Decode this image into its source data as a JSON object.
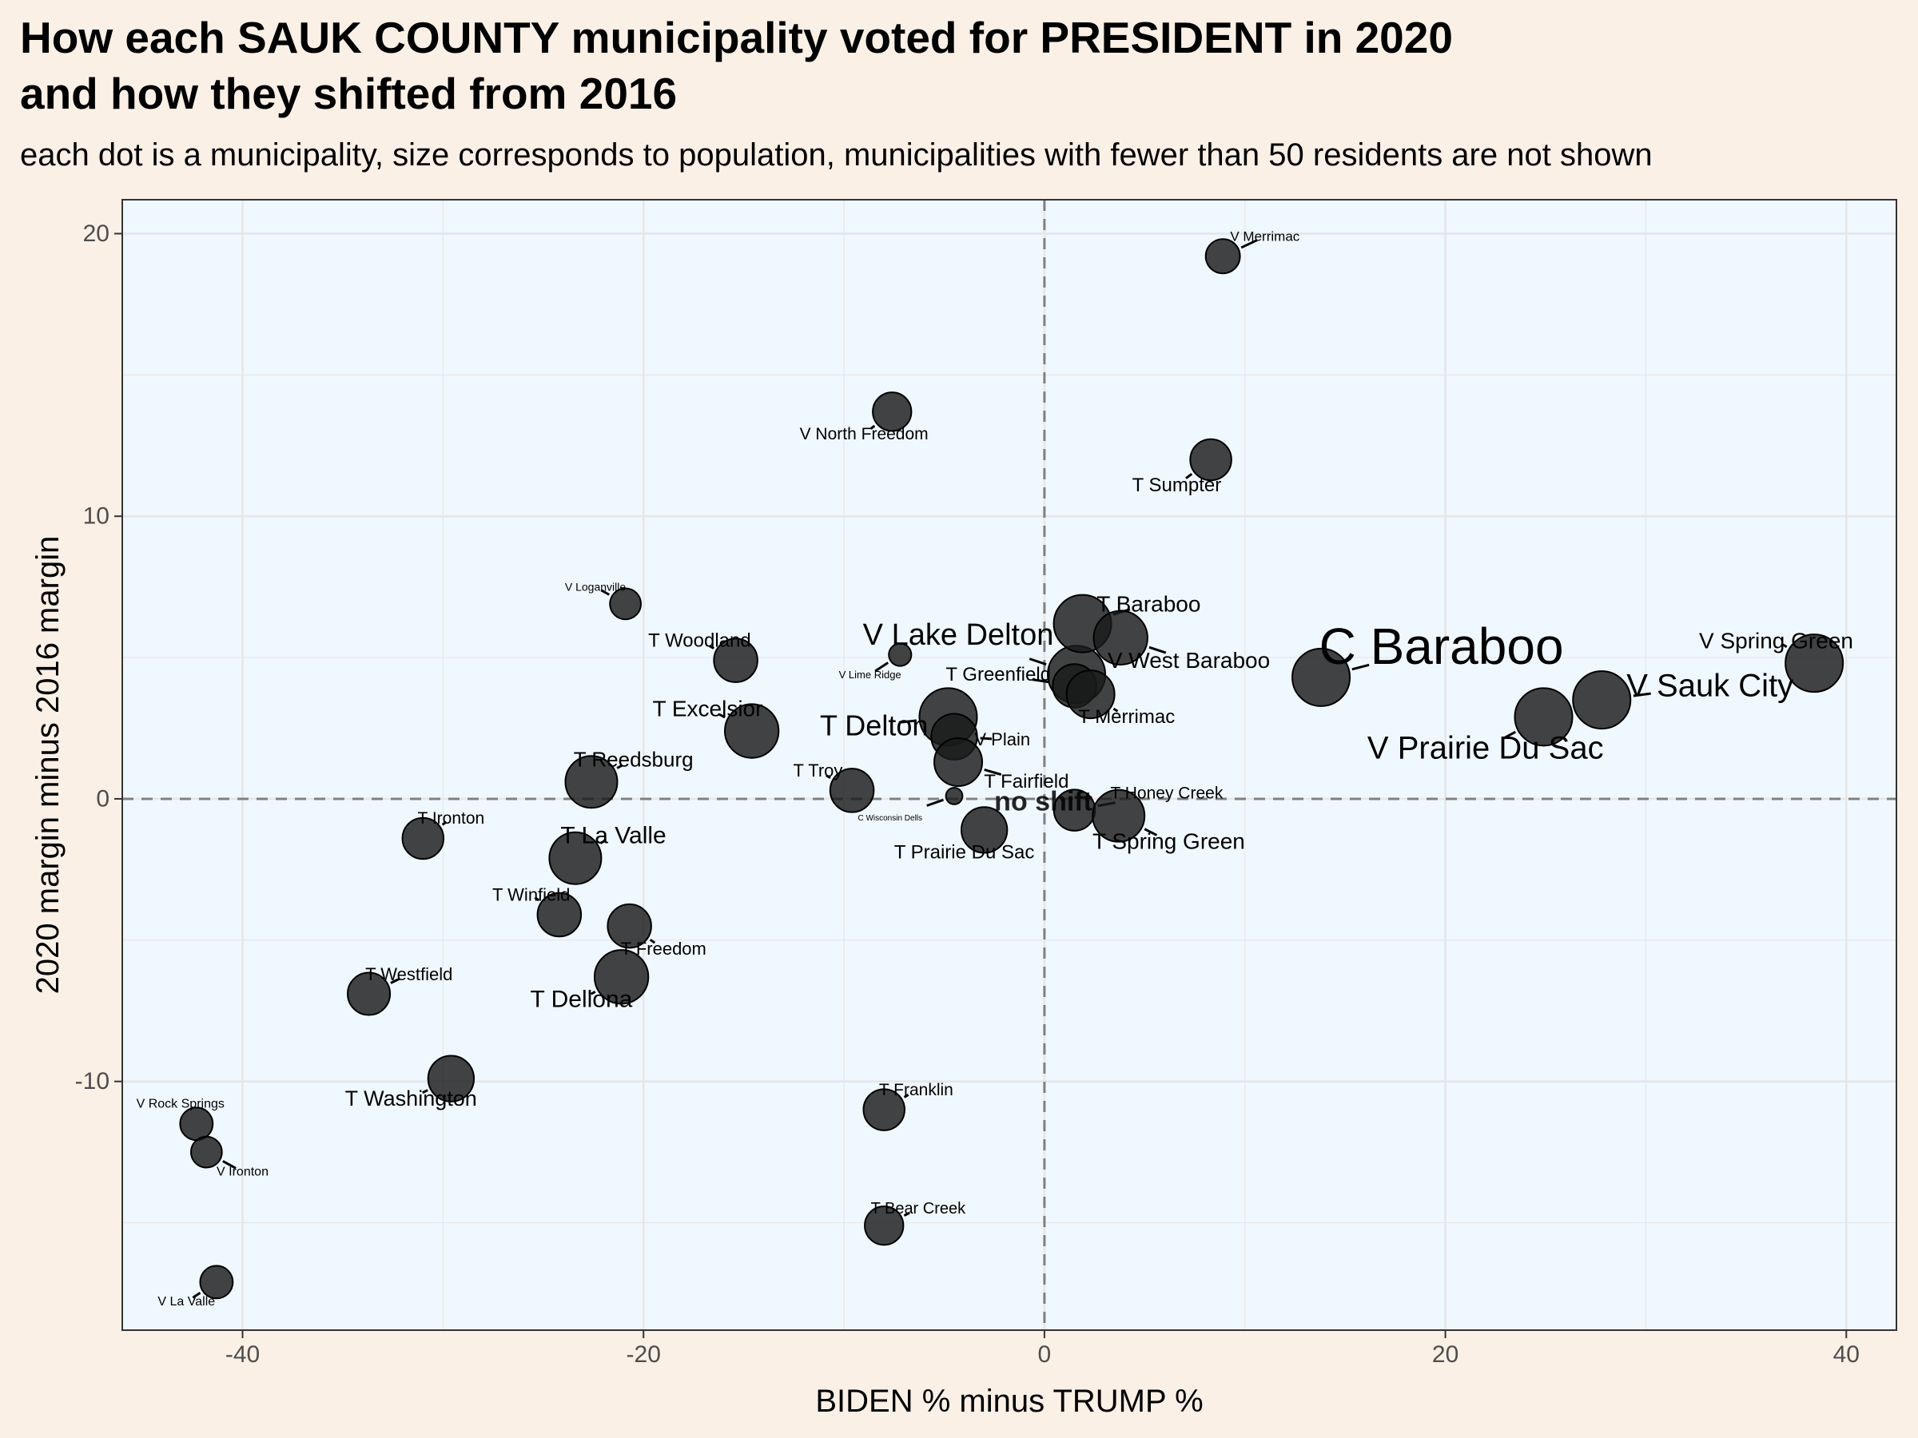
{
  "title_line1": "How each SAUK COUNTY municipality voted for PRESIDENT in 2020",
  "title_line2": "and how they shifted from 2016",
  "subtitle": "each dot is a municipality, size corresponds to population, municipalities with fewer than 50 residents are not shown",
  "colors": {
    "page_background": "#FAF0E6",
    "panel_background": "#F0F8FF",
    "grid": "#E6E6E6",
    "points": "#1a1a1a",
    "reference_lines": "#808080"
  },
  "chart_data": {
    "type": "scatter",
    "xlabel": "BIDEN % minus TRUMP %",
    "ylabel": "2020 margin minus 2016 margin",
    "xlim": [
      -46,
      42.5
    ],
    "ylim": [
      -18.8,
      21.2
    ],
    "xticks": [
      -40,
      -20,
      0,
      20,
      40
    ],
    "yticks": [
      -10,
      0,
      10,
      20
    ],
    "grid": true,
    "reference_lines": {
      "x": 0,
      "y": 0,
      "style": "dashed"
    },
    "reference_label": "no shift",
    "points": [
      {
        "name": "C Baraboo",
        "x": 13.8,
        "y": 4.3,
        "size": 12000,
        "label_size": 64,
        "lx": 19.8,
        "ly": 5.4
      },
      {
        "name": "V Sauk City",
        "x": 27.8,
        "y": 3.5,
        "size": 3500,
        "label_size": 40,
        "lx": 33.2,
        "ly": 4.0
      },
      {
        "name": "V Prairie Du Sac",
        "x": 24.9,
        "y": 2.9,
        "size": 4200,
        "label_size": 40,
        "lx": 22.0,
        "ly": 1.8
      },
      {
        "name": "V Spring Green",
        "x": 38.4,
        "y": 4.8,
        "size": 1650,
        "label_size": 28,
        "lx": 36.5,
        "ly": 5.6
      },
      {
        "name": "V Merrimac",
        "x": 8.9,
        "y": 19.2,
        "size": 450,
        "label_size": 17,
        "lx": 11.0,
        "ly": 19.9
      },
      {
        "name": "T Sumpter",
        "x": 8.3,
        "y": 12.0,
        "size": 700,
        "label_size": 24,
        "lx": 6.6,
        "ly": 11.1
      },
      {
        "name": "V North Freedom",
        "x": -7.6,
        "y": 13.7,
        "size": 600,
        "label_size": 21,
        "lx": -9.0,
        "ly": 12.9
      },
      {
        "name": "V Lake Delton",
        "x": 1.6,
        "y": 4.4,
        "size": 2900,
        "label_size": 38,
        "lx": -4.3,
        "ly": 5.8
      },
      {
        "name": "T Baraboo",
        "x": 1.9,
        "y": 6.2,
        "size": 1800,
        "label_size": 28,
        "lx": 5.2,
        "ly": 6.9
      },
      {
        "name": "V West Baraboo",
        "x": 3.8,
        "y": 5.7,
        "size": 1300,
        "label_size": 28,
        "lx": 7.2,
        "ly": 4.9
      },
      {
        "name": "T Greenfield",
        "x": 1.5,
        "y": 4.0,
        "size": 800,
        "label_size": 24,
        "lx": -2.3,
        "ly": 4.4
      },
      {
        "name": "T Merrimac",
        "x": 2.3,
        "y": 3.7,
        "size": 1000,
        "label_size": 24,
        "lx": 4.1,
        "ly": 2.9
      },
      {
        "name": "T Delton",
        "x": -4.8,
        "y": 2.9,
        "size": 8000,
        "label_size": 36,
        "lx": -8.5,
        "ly": 2.6
      },
      {
        "name": "V Lime Ridge",
        "x": -7.2,
        "y": 5.1,
        "size": 150,
        "label_size": 13,
        "lx": -8.7,
        "ly": 4.4
      },
      {
        "name": "V Plain",
        "x": -4.5,
        "y": 2.2,
        "size": 900,
        "label_size": 22,
        "lx": -2.1,
        "ly": 2.1
      },
      {
        "name": "T Fairfield",
        "x": -4.3,
        "y": 1.3,
        "size": 1000,
        "label_size": 24,
        "lx": -0.9,
        "ly": 0.6
      },
      {
        "name": "T Troy",
        "x": -9.6,
        "y": 0.3,
        "size": 800,
        "label_size": 22,
        "lx": -11.3,
        "ly": 1.0
      },
      {
        "name": "C Wisconsin Dells",
        "x": -4.5,
        "y": 0.1,
        "size": 60,
        "label_size": 10,
        "lx": -7.7,
        "ly": -0.7
      },
      {
        "name": "T Prairie Du Sac",
        "x": -3.0,
        "y": -1.1,
        "size": 900,
        "label_size": 24,
        "lx": -4.0,
        "ly": -1.9
      },
      {
        "name": "T Honey Creek",
        "x": 1.5,
        "y": -0.4,
        "size": 700,
        "label_size": 21,
        "lx": 6.1,
        "ly": 0.2
      },
      {
        "name": "T Spring Green",
        "x": 3.7,
        "y": -0.6,
        "size": 1200,
        "label_size": 28,
        "lx": 6.2,
        "ly": -1.5
      },
      {
        "name": "V Loganville",
        "x": -20.9,
        "y": 6.9,
        "size": 350,
        "label_size": 14,
        "lx": -22.4,
        "ly": 7.5
      },
      {
        "name": "T Woodland",
        "x": -15.4,
        "y": 4.9,
        "size": 800,
        "label_size": 24,
        "lx": -17.2,
        "ly": 5.6
      },
      {
        "name": "T Excelsior",
        "x": -14.6,
        "y": 2.4,
        "size": 1300,
        "label_size": 28,
        "lx": -16.8,
        "ly": 3.2
      },
      {
        "name": "T Reedsburg",
        "x": -22.6,
        "y": 0.6,
        "size": 1200,
        "label_size": 26,
        "lx": -20.5,
        "ly": 1.4
      },
      {
        "name": "T Ironton",
        "x": -31.0,
        "y": -1.4,
        "size": 700,
        "label_size": 21,
        "lx": -29.6,
        "ly": -0.7
      },
      {
        "name": "T La Valle",
        "x": -23.4,
        "y": -2.1,
        "size": 1200,
        "label_size": 30,
        "lx": -21.5,
        "ly": -1.3
      },
      {
        "name": "T Winfield",
        "x": -24.2,
        "y": -4.1,
        "size": 800,
        "label_size": 22,
        "lx": -25.6,
        "ly": -3.4
      },
      {
        "name": "T Freedom",
        "x": -20.7,
        "y": -4.5,
        "size": 800,
        "label_size": 22,
        "lx": -19.0,
        "ly": -5.3
      },
      {
        "name": "T Dellona",
        "x": -21.1,
        "y": -6.3,
        "size": 1300,
        "label_size": 30,
        "lx": -23.1,
        "ly": -7.1
      },
      {
        "name": "T Westfield",
        "x": -33.7,
        "y": -6.9,
        "size": 750,
        "label_size": 22,
        "lx": -31.7,
        "ly": -6.2
      },
      {
        "name": "T Washington",
        "x": -29.6,
        "y": -9.9,
        "size": 900,
        "label_size": 27,
        "lx": -31.6,
        "ly": -10.6
      },
      {
        "name": "V Rock Springs",
        "x": -42.3,
        "y": -11.5,
        "size": 400,
        "label_size": 16,
        "lx": -43.1,
        "ly": -10.8
      },
      {
        "name": "V Ironton",
        "x": -41.8,
        "y": -12.5,
        "size": 350,
        "label_size": 16,
        "lx": -40.0,
        "ly": -13.2
      },
      {
        "name": "V La Valle",
        "x": -41.3,
        "y": -17.1,
        "size": 400,
        "label_size": 16,
        "lx": -42.8,
        "ly": -17.8
      },
      {
        "name": "T Franklin",
        "x": -8.0,
        "y": -11.0,
        "size": 700,
        "label_size": 21,
        "lx": -6.4,
        "ly": -10.3
      },
      {
        "name": "T Bear Creek",
        "x": -8.0,
        "y": -15.1,
        "size": 600,
        "label_size": 20,
        "lx": -6.3,
        "ly": -14.5
      }
    ]
  }
}
